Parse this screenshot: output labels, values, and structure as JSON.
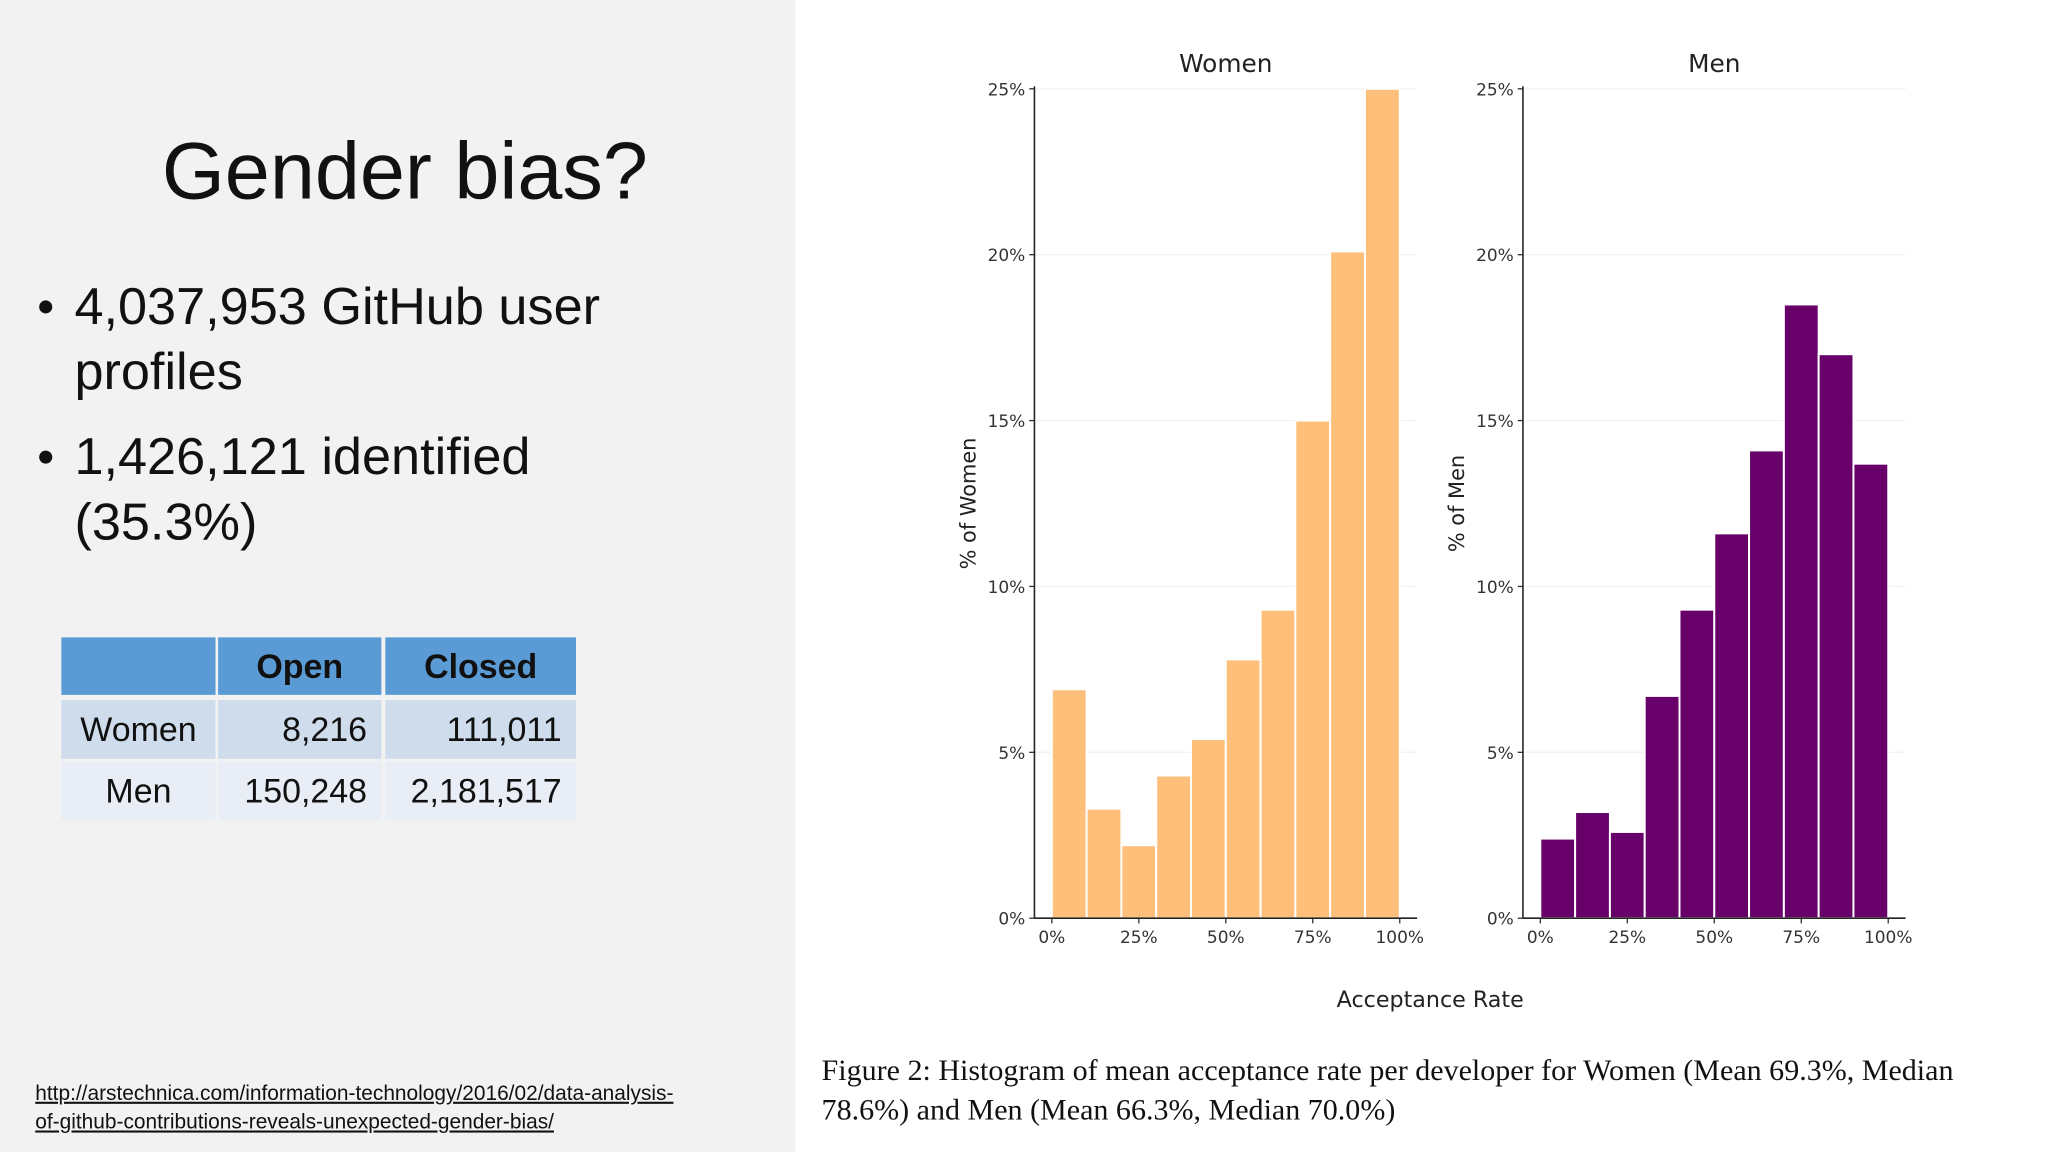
{
  "slide": {
    "title": "Gender bias?",
    "bullets": [
      [
        "4,037,953 GitHub user",
        "profiles"
      ],
      [
        "1,426,121 identified",
        "(35.3%)"
      ]
    ],
    "table": {
      "header": [
        "",
        "Open",
        "Closed"
      ],
      "rows": [
        [
          "Women",
          "8,216",
          "111,011"
        ],
        [
          "Men",
          "150,248",
          "2,181,517"
        ]
      ]
    },
    "link": [
      "http://arstechnica.com/information-technology/2016/02/data-analysis-",
      "of-github-contributions-reveals-unexpected-gender-bias/"
    ]
  },
  "figure": {
    "xlabel": "Acceptance Rate",
    "caption": [
      "Figure 2: Histogram of mean acceptance rate per developer for Women (Mean 69.3%, Median",
      "78.6%) and Men (Mean 66.3%, Median 70.0%)"
    ]
  },
  "chart_data": [
    {
      "type": "histogram",
      "title": "Women",
      "ylabel": "% of Women",
      "color": "#fdbf7a",
      "bins": [
        0,
        10,
        20,
        30,
        40,
        50,
        60,
        70,
        80,
        90,
        100
      ],
      "values": [
        6.9,
        3.3,
        2.2,
        4.3,
        5.4,
        7.8,
        9.3,
        15.0,
        20.1,
        25.0
      ],
      "xlim": [
        -5,
        105
      ],
      "ylim": [
        0,
        25
      ],
      "xticks": [
        {
          "value": 0,
          "label": "0%"
        },
        {
          "value": 25,
          "label": "25%"
        },
        {
          "value": 50,
          "label": "50%"
        },
        {
          "value": 75,
          "label": "75%"
        },
        {
          "value": 100,
          "label": "100%"
        }
      ],
      "yticks": [
        {
          "value": 0,
          "label": "0%"
        },
        {
          "value": 5,
          "label": "5%"
        },
        {
          "value": 10,
          "label": "10%"
        },
        {
          "value": 15,
          "label": "15%"
        },
        {
          "value": 20,
          "label": "20%"
        },
        {
          "value": 25,
          "label": "25%"
        }
      ],
      "grid": true
    },
    {
      "type": "histogram",
      "title": "Men",
      "ylabel": "% of Men",
      "color": "#68006a",
      "bins": [
        0,
        10,
        20,
        30,
        40,
        50,
        60,
        70,
        80,
        90,
        100
      ],
      "values": [
        2.4,
        3.2,
        2.6,
        6.7,
        9.3,
        11.6,
        14.1,
        18.5,
        17.0,
        13.7
      ],
      "xlim": [
        -5,
        105
      ],
      "ylim": [
        0,
        25
      ],
      "xticks": [
        {
          "value": 0,
          "label": "0%"
        },
        {
          "value": 25,
          "label": "25%"
        },
        {
          "value": 50,
          "label": "50%"
        },
        {
          "value": 75,
          "label": "75%"
        },
        {
          "value": 100,
          "label": "100%"
        }
      ],
      "yticks": [
        {
          "value": 0,
          "label": "0%"
        },
        {
          "value": 5,
          "label": "5%"
        },
        {
          "value": 10,
          "label": "10%"
        },
        {
          "value": 15,
          "label": "15%"
        },
        {
          "value": 20,
          "label": "20%"
        },
        {
          "value": 25,
          "label": "25%"
        }
      ],
      "grid": true
    }
  ]
}
